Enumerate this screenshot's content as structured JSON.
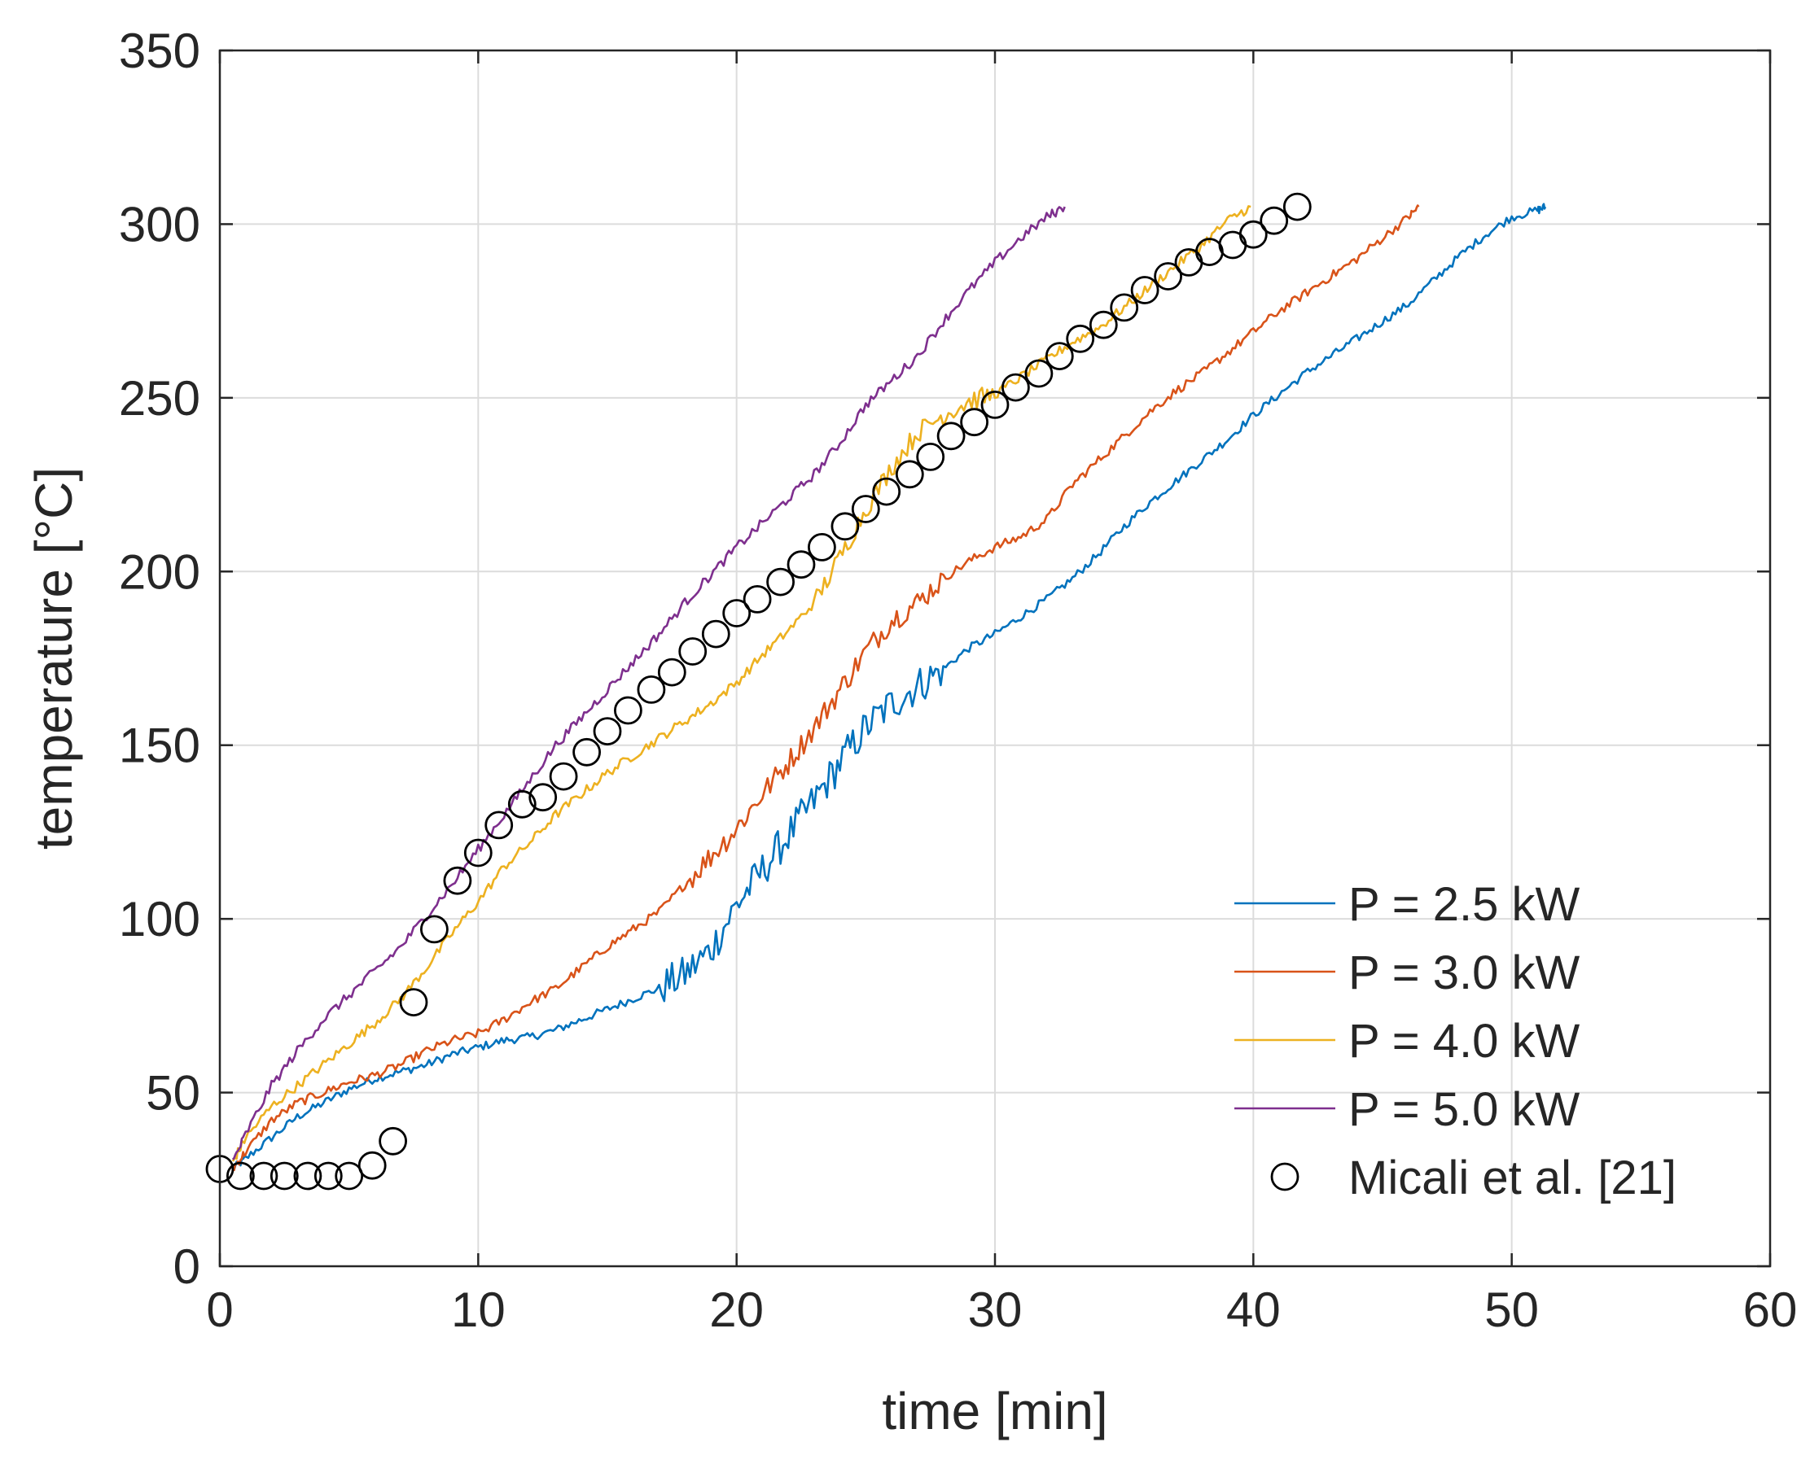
{
  "chart_data": {
    "type": "line",
    "title": "",
    "xlabel": "time [min]",
    "ylabel": "temperature [°C]",
    "xlim": [
      0,
      60
    ],
    "ylim": [
      0,
      350
    ],
    "xticks": [
      0,
      10,
      20,
      30,
      40,
      50,
      60
    ],
    "yticks": [
      0,
      50,
      100,
      150,
      200,
      250,
      300,
      350
    ],
    "xtick_labels": [
      "0",
      "10",
      "20",
      "30",
      "40",
      "50",
      "60"
    ],
    "ytick_labels": [
      "0",
      "50",
      "100",
      "150",
      "200",
      "250",
      "300",
      "350"
    ],
    "grid": true,
    "legend_position": "bottom-right",
    "series": [
      {
        "name": "P = 2.5 kW",
        "kind": "line",
        "color": "#0072BD",
        "x": [
          0.5,
          1,
          2,
          3,
          4,
          5,
          6,
          7,
          8,
          9,
          10,
          11,
          12,
          13,
          14,
          15,
          16,
          17,
          18,
          19,
          20,
          21,
          22,
          23,
          24,
          25,
          26,
          27,
          28,
          29,
          30,
          31,
          32,
          33,
          34,
          35,
          36,
          37,
          38,
          39,
          40,
          41,
          42,
          43,
          44,
          45,
          46,
          47,
          48,
          49,
          50,
          51,
          51.3
        ],
        "y": [
          28,
          31,
          37,
          43,
          47,
          51,
          54,
          56,
          58,
          61,
          63,
          65,
          66,
          68,
          71,
          74,
          77,
          80,
          84,
          91,
          104,
          114,
          124,
          134,
          145,
          155,
          162,
          167,
          172,
          178,
          182,
          187,
          192,
          198,
          205,
          213,
          220,
          226,
          232,
          238,
          245,
          251,
          257,
          262,
          267,
          272,
          277,
          284,
          291,
          297,
          302,
          304,
          305
        ]
      },
      {
        "name": "P = 3.0 kW",
        "kind": "line",
        "color": "#D95319",
        "x": [
          0.5,
          1,
          2,
          3,
          4,
          5,
          6,
          7,
          8,
          9,
          10,
          11,
          12,
          13,
          14,
          15,
          16,
          17,
          18,
          19,
          20,
          21,
          22,
          23,
          24,
          25,
          26,
          27,
          28,
          29,
          30,
          31,
          32,
          33,
          34,
          35,
          36,
          37,
          38,
          39,
          40,
          41,
          42,
          43,
          44,
          45,
          46,
          46.4
        ],
        "y": [
          28,
          33,
          42,
          47,
          50,
          53,
          55,
          58,
          62,
          65,
          67,
          71,
          76,
          80,
          86,
          92,
          97,
          102,
          110,
          118,
          126,
          136,
          145,
          155,
          166,
          177,
          186,
          191,
          198,
          203,
          207,
          210,
          215,
          225,
          232,
          239,
          246,
          252,
          257,
          263,
          269,
          275,
          280,
          285,
          290,
          296,
          302,
          305
        ]
      },
      {
        "name": "P = 4.0 kW",
        "kind": "line",
        "color": "#EDB120",
        "x": [
          0.5,
          1,
          2,
          3,
          4,
          5,
          6,
          7,
          8,
          9,
          10,
          11,
          12,
          13,
          14,
          15,
          16,
          17,
          18,
          19,
          20,
          21,
          22,
          23,
          24,
          25,
          26,
          27,
          28,
          29,
          30,
          31,
          32,
          33,
          34,
          35,
          36,
          37,
          38,
          39,
          39.9
        ],
        "y": [
          30,
          37,
          46,
          52,
          58,
          64,
          70,
          77,
          86,
          96,
          105,
          115,
          122,
          130,
          136,
          142,
          147,
          152,
          157,
          162,
          168,
          176,
          183,
          191,
          204,
          218,
          230,
          240,
          245,
          249,
          251,
          256,
          261,
          266,
          270,
          276,
          282,
          288,
          294,
          301,
          305
        ]
      },
      {
        "name": "P = 5.0 kW",
        "kind": "line",
        "color": "#7E2F8E",
        "x": [
          0.5,
          1,
          2,
          3,
          4,
          5,
          6,
          7,
          8,
          9,
          10,
          11,
          12,
          13,
          14,
          15,
          16,
          17,
          18,
          19,
          20,
          21,
          22,
          23,
          24,
          25,
          26,
          27,
          28,
          29,
          30,
          31,
          32,
          32.7
        ],
        "y": [
          30,
          38,
          52,
          62,
          71,
          78,
          85,
          92,
          101,
          110,
          120,
          130,
          140,
          150,
          158,
          166,
          174,
          182,
          191,
          199,
          207,
          214,
          221,
          228,
          237,
          248,
          255,
          262,
          272,
          281,
          289,
          296,
          302,
          305
        ]
      },
      {
        "name": "Micali et al. [21]",
        "kind": "markers",
        "marker": "circle",
        "color": "#000000",
        "x": [
          0.0,
          0.8,
          1.7,
          2.5,
          3.4,
          4.2,
          5.0,
          5.9,
          6.7,
          7.5,
          8.3,
          9.2,
          10.0,
          10.8,
          11.7,
          12.5,
          13.3,
          14.2,
          15.0,
          15.8,
          16.7,
          17.5,
          18.3,
          19.2,
          20.0,
          20.8,
          21.7,
          22.5,
          23.3,
          24.2,
          25.0,
          25.8,
          26.7,
          27.5,
          28.3,
          29.2,
          30.0,
          30.8,
          31.7,
          32.5,
          33.3,
          34.2,
          35.0,
          35.8,
          36.7,
          37.5,
          38.3,
          39.2,
          40.0,
          40.8,
          41.7
        ],
        "y": [
          28,
          26,
          26,
          26,
          26,
          26,
          26,
          29,
          36,
          76,
          97,
          111,
          119,
          127,
          133,
          135,
          141,
          148,
          154,
          160,
          166,
          171,
          177,
          182,
          188,
          192,
          197,
          202,
          207,
          213,
          218,
          223,
          228,
          233,
          239,
          243,
          248,
          253,
          257,
          262,
          267,
          271,
          276,
          281,
          285,
          289,
          292,
          294,
          297,
          301,
          305
        ]
      }
    ]
  }
}
